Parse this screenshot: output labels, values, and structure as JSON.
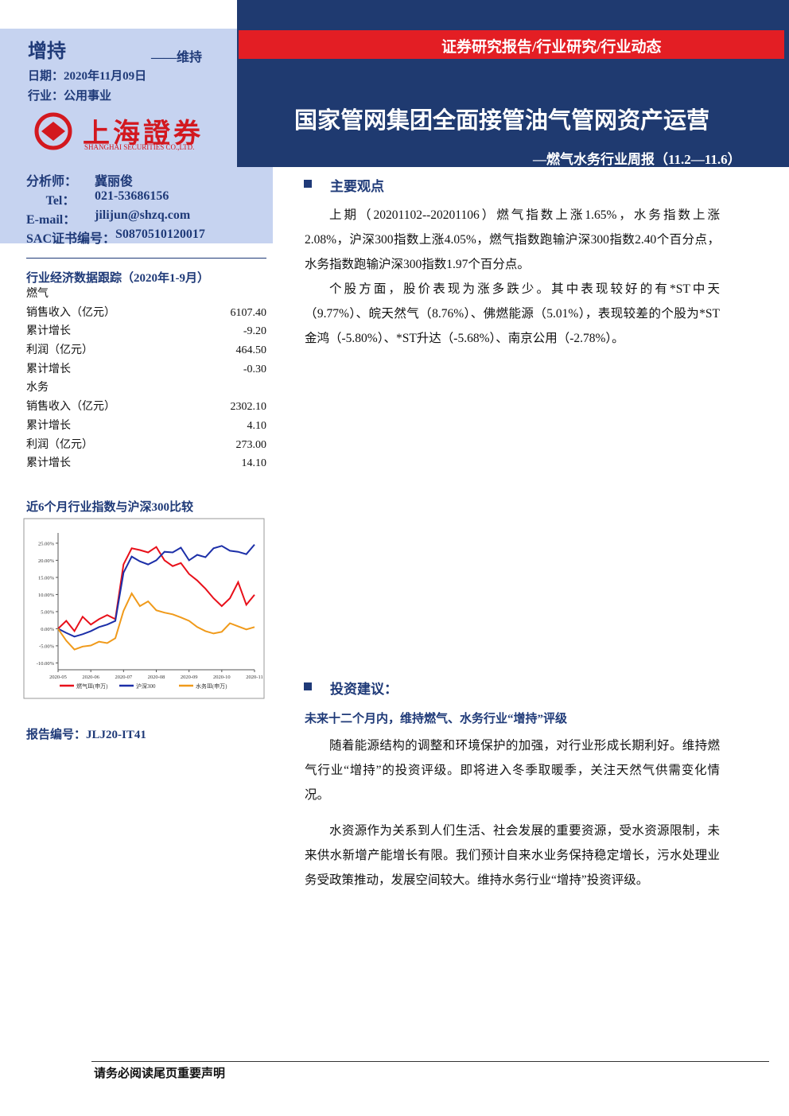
{
  "header": {
    "rating": "增持",
    "rating_note": "——维持",
    "date": "日期：2020年11月09日",
    "industry": "行业：公用事业",
    "logo_name": "上海證券",
    "logo_en": "SHANGHAI SECURITIES CO.,LTD.",
    "banner": "证券研究报告/行业研究/行业动态",
    "title": "国家管网集团全面接管油气管网资产运营",
    "subtitle": "—燃气水务行业周报（11.2—11.6）"
  },
  "analyst": [
    [
      "分析师：",
      "冀丽俊"
    ],
    [
      "Tel：",
      "021-53686156"
    ],
    [
      "E-mail：",
      "jilijun@shzq.com"
    ],
    [
      "SAC证书编号：",
      "S0870510120017"
    ]
  ],
  "data_table": {
    "title": "行业经济数据跟踪（2020年1-9月）",
    "rows": [
      [
        "燃气",
        ""
      ],
      [
        "销售收入（亿元）",
        "6107.40"
      ],
      [
        "累计增长",
        "-9.20"
      ],
      [
        "利润（亿元）",
        "464.50"
      ],
      [
        "累计增长",
        "-0.30"
      ],
      [
        "水务",
        ""
      ],
      [
        "销售收入（亿元）",
        "2302.10"
      ],
      [
        "累计增长",
        "4.10"
      ],
      [
        "利润（亿元）",
        "273.00"
      ],
      [
        "累计增长",
        "14.10"
      ]
    ]
  },
  "chart_title": "近6个月行业指数与沪深300比较",
  "chart_data": {
    "type": "line",
    "categories": [
      "2020-05",
      null,
      null,
      null,
      "2020-06",
      null,
      null,
      null,
      "2020-07",
      null,
      null,
      null,
      "2020-08",
      null,
      null,
      null,
      "2020-09",
      null,
      null,
      null,
      "2020-10",
      null,
      null,
      null,
      "2020-11"
    ],
    "series": [
      {
        "name": "燃气Ⅲ(申万)",
        "color": "#e8101a",
        "values": [
          0,
          2.3,
          -0.7,
          3.5,
          1.2,
          2.8,
          4.0,
          2.8,
          18.8,
          23.5,
          23.0,
          22.3,
          23.9,
          20.0,
          18.3,
          19.2,
          16.0,
          14.1,
          11.7,
          8.9,
          6.6,
          8.9,
          13.6,
          7.0,
          9.9
        ]
      },
      {
        "name": "沪深300",
        "color": "#1c2fa8",
        "values": [
          0,
          -1.2,
          -2.3,
          -1.6,
          -0.7,
          0.5,
          1.2,
          2.3,
          16.4,
          21.1,
          19.7,
          18.8,
          20.0,
          22.5,
          22.3,
          23.7,
          20.0,
          21.6,
          20.9,
          23.5,
          24.2,
          22.8,
          22.5,
          21.8,
          24.6
        ]
      },
      {
        "name": "水务Ⅲ(申万)",
        "color": "#f09a1a",
        "values": [
          0,
          -3.5,
          -6.1,
          -5.2,
          -4.9,
          -3.8,
          -4.2,
          -2.8,
          5.2,
          10.3,
          6.6,
          8.0,
          5.4,
          4.7,
          4.2,
          3.3,
          2.3,
          0.5,
          -0.7,
          -1.4,
          -0.9,
          1.6,
          0.7,
          -0.2,
          0.5
        ]
      }
    ],
    "ylim": [
      -12,
      28
    ],
    "yticks": [
      {
        "value": 25,
        "label": "25.00%"
      },
      {
        "value": 20,
        "label": "20.00%"
      },
      {
        "value": 15,
        "label": "15.00%"
      },
      {
        "value": 10,
        "label": "10.00%"
      },
      {
        "value": 5,
        "label": "5.00%"
      },
      {
        "value": 0,
        "label": "0.00%"
      },
      {
        "value": -5,
        "label": "-5.00%"
      },
      {
        "value": -10,
        "label": "-10.00%"
      }
    ]
  },
  "report_no": "报告编号：JLJ20-IT41",
  "main": {
    "section1_title": "主要观点",
    "section1_paragraphs": [
      "上期（20201102--20201106）燃气指数上涨1.65%，水务指数上涨2.08%，沪深300指数上涨4.05%，燃气指数跑输沪深300指数2.40个百分点，水务指数跑输沪深300指数1.97个百分点。",
      "个股方面，股价表现为涨多跌少。其中表现较好的有*ST中天（9.77%）、皖天然气（8.76%）、佛燃能源（5.01%），表现较差的个股为*ST金鸿（-5.80%）、*ST升达（-5.68%）、南京公用（-2.78%）。"
    ],
    "section2_title": "投资建议：",
    "section2_subtitle": "未来十二个月内，维持燃气、水务行业“增持”评级",
    "section2_paragraphs": [
      "随着能源结构的调整和环境保护的加强，对行业形成长期利好。维持燃气行业“增持”的投资评级。即将进入冬季取暖季，关注天然气供需变化情况。",
      "水资源作为关系到人们生活、社会发展的重要资源，受水资源限制，未来供水新增产能增长有限。我们预计自来水业务保持稳定增长，污水处理业务受政策推动，发展空间较大。维持水务行业“增持”投资评级。"
    ]
  },
  "footer": "请务必阅读尾页重要声明"
}
